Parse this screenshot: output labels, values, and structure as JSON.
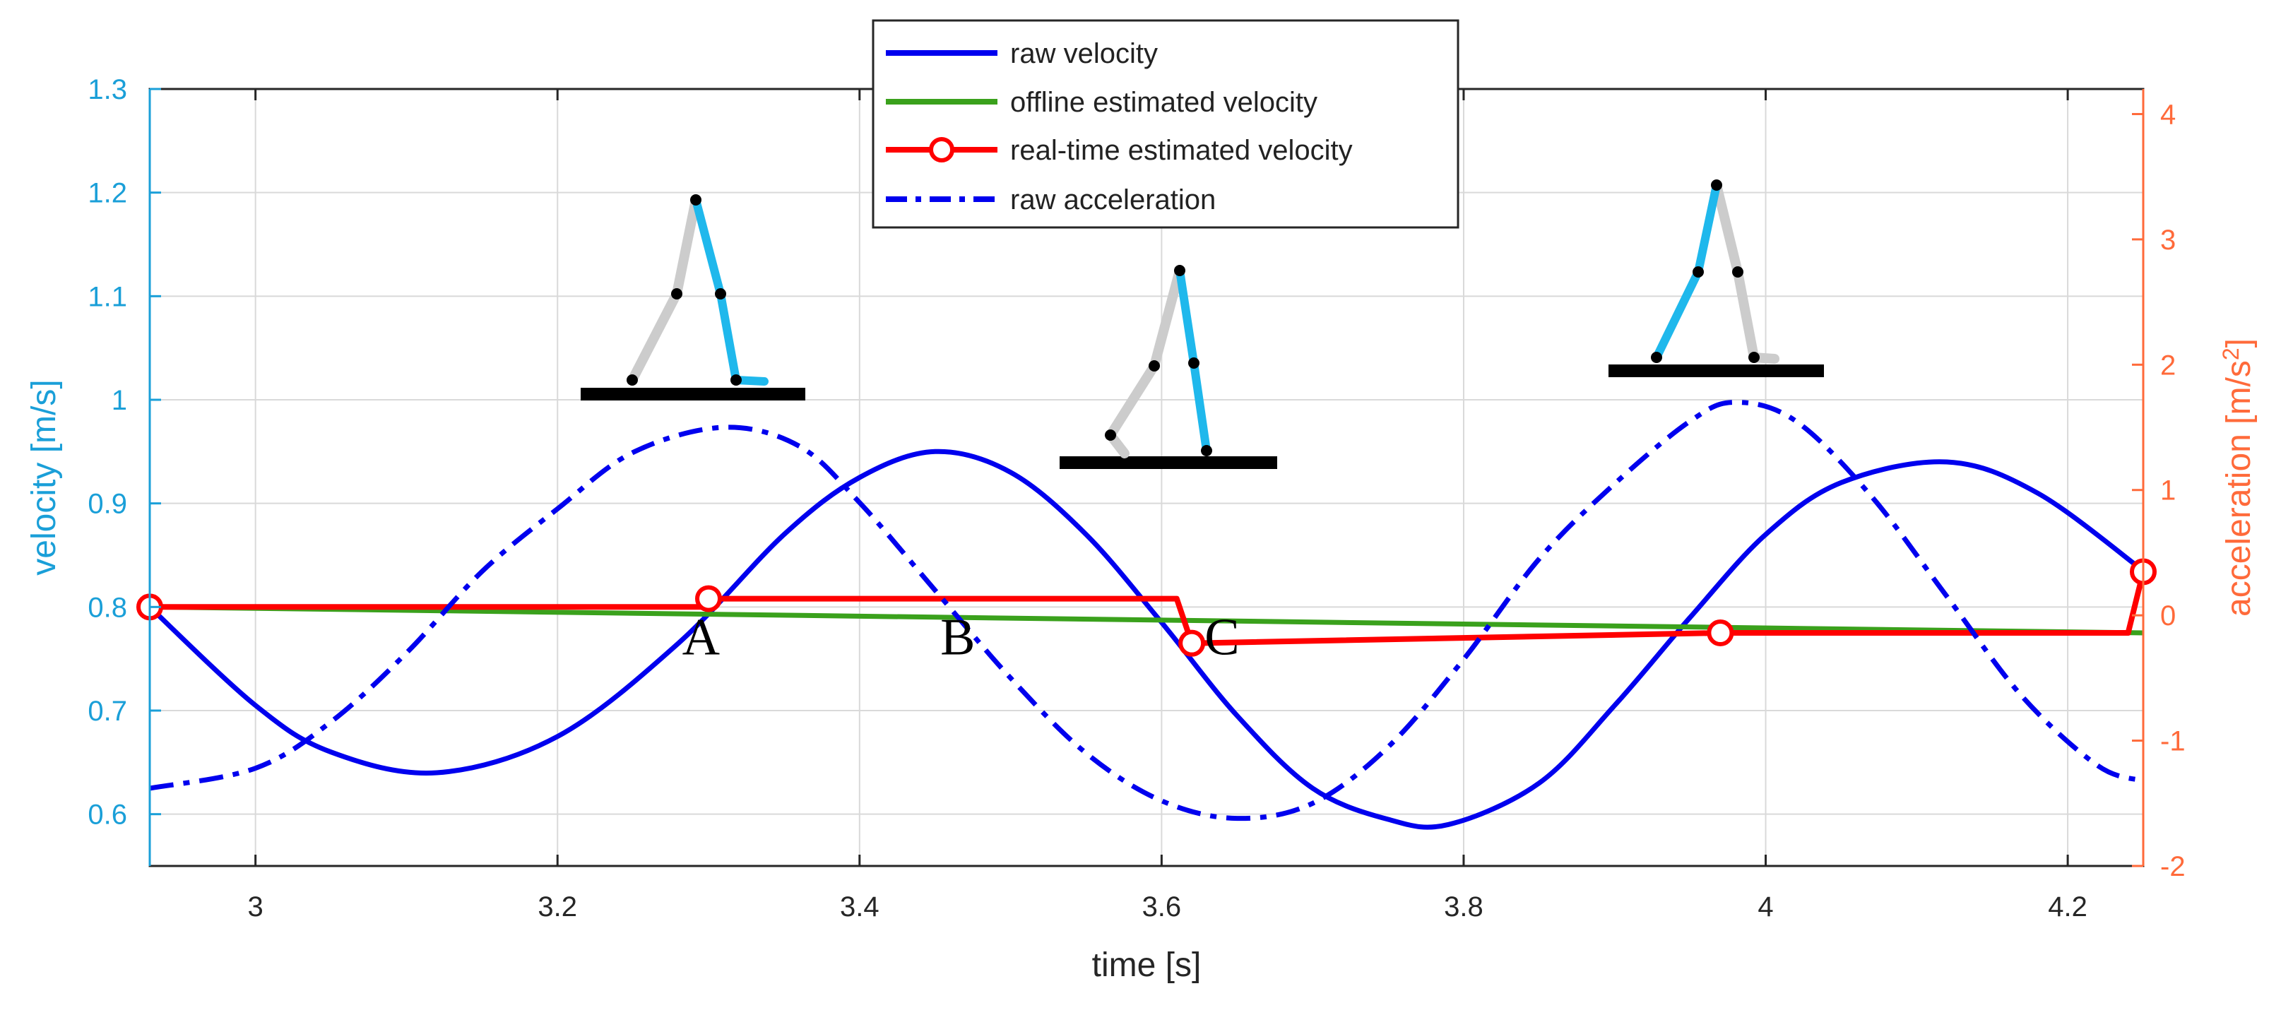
{
  "chart_data": {
    "type": "line",
    "xlabel": "time [s]",
    "ylabel_left": "velocity [m/s]",
    "ylabel_right_base": "acceleration [m/s",
    "ylabel_right_sup": "2",
    "ylabel_right_tail": "]",
    "xlim": [
      2.93,
      4.25
    ],
    "ylim_left": [
      0.55,
      1.3
    ],
    "ylim_right": [
      -2,
      4.2
    ],
    "xticks": [
      3,
      3.2,
      3.4,
      3.6,
      3.8,
      4,
      4.2
    ],
    "xtick_labels": [
      "3",
      "3.2",
      "3.4",
      "3.6",
      "3.8",
      "4",
      "4.2"
    ],
    "yticks_left": [
      0.6,
      0.7,
      0.8,
      0.9,
      1.0,
      1.1,
      1.2,
      1.3
    ],
    "ytick_labels_left": [
      "0.6",
      "0.7",
      "0.8",
      "0.9",
      "1",
      "1.1",
      "1.2",
      "1.3"
    ],
    "yticks_right": [
      -2,
      -1,
      0,
      1,
      2,
      3,
      4
    ],
    "ytick_labels_right": [
      "-2",
      "-1",
      "0",
      "1",
      "2",
      "3",
      "4"
    ],
    "grid": true,
    "legend_position": "top-center",
    "colors": {
      "raw_velocity": "#0000ee",
      "offline": "#3aa11c",
      "realtime": "#ff0000",
      "left_axis": "#1a9fd8",
      "right_axis": "#ff6a3a",
      "grid": "#d9d9d9",
      "limb_cyan": "#1fb8ec",
      "limb_gray": "#cccccc"
    },
    "series": [
      {
        "name": "raw velocity",
        "axis": "left",
        "style": "solid",
        "x": [
          2.93,
          3.0,
          3.05,
          3.12,
          3.2,
          3.28,
          3.35,
          3.4,
          3.45,
          3.5,
          3.55,
          3.6,
          3.65,
          3.7,
          3.75,
          3.79,
          3.85,
          3.9,
          3.95,
          4.0,
          4.05,
          4.12,
          4.18,
          4.25
        ],
        "values": [
          0.8,
          0.705,
          0.66,
          0.64,
          0.675,
          0.765,
          0.87,
          0.925,
          0.95,
          0.93,
          0.87,
          0.785,
          0.695,
          0.625,
          0.595,
          0.59,
          0.63,
          0.705,
          0.79,
          0.87,
          0.92,
          0.94,
          0.91,
          0.835
        ]
      },
      {
        "name": "offline estimated velocity",
        "axis": "left",
        "style": "solid",
        "x": [
          2.93,
          4.25
        ],
        "values": [
          0.8,
          0.775
        ]
      },
      {
        "name": "real-time estimated velocity",
        "axis": "left",
        "style": "solid-markers",
        "x": [
          2.93,
          3.3,
          3.3,
          3.61,
          3.62,
          3.62,
          3.97,
          4.24,
          4.25
        ],
        "values": [
          0.8,
          0.8,
          0.808,
          0.808,
          0.765,
          0.765,
          0.775,
          0.775,
          0.834
        ],
        "markers_x": [
          2.93,
          3.3,
          3.62,
          3.97,
          4.25
        ],
        "markers_y": [
          0.8,
          0.808,
          0.765,
          0.775,
          0.834
        ]
      },
      {
        "name": "raw acceleration",
        "axis": "right",
        "style": "dash-dot",
        "x": [
          2.93,
          3.0,
          3.05,
          3.1,
          3.15,
          3.2,
          3.25,
          3.31,
          3.36,
          3.4,
          3.45,
          3.5,
          3.55,
          3.6,
          3.65,
          3.7,
          3.75,
          3.8,
          3.85,
          3.9,
          3.95,
          3.98,
          4.02,
          4.07,
          4.12,
          4.17,
          4.22,
          4.25
        ],
        "values": [
          -1.38,
          -1.22,
          -0.85,
          -0.3,
          0.35,
          0.85,
          1.3,
          1.5,
          1.35,
          0.9,
          0.2,
          -0.5,
          -1.1,
          -1.48,
          -1.62,
          -1.5,
          -1.05,
          -0.35,
          0.45,
          1.05,
          1.55,
          1.7,
          1.55,
          0.95,
          0.15,
          -0.65,
          -1.2,
          -1.32
        ]
      }
    ],
    "annotations": [
      {
        "label": "A",
        "x": 3.295,
        "y": 0.772
      },
      {
        "label": "B",
        "x": 3.465,
        "y": 0.772
      },
      {
        "label": "C",
        "x": 3.64,
        "y": 0.772
      }
    ]
  },
  "legend": {
    "items": [
      "raw velocity",
      "offline estimated velocity",
      "real-time estimated velocity",
      "raw acceleration"
    ]
  }
}
